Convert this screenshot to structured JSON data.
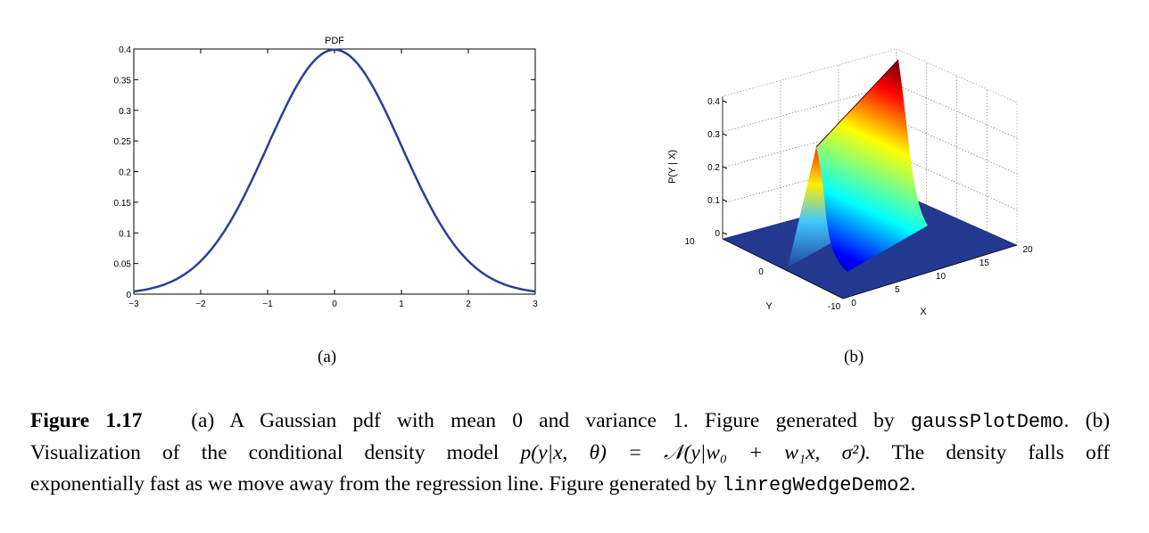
{
  "figure_a": {
    "label": "(a)",
    "chart_data": {
      "type": "line",
      "title": "PDF",
      "xlabel": "",
      "ylabel": "",
      "xlim": [
        -3,
        3
      ],
      "ylim": [
        0,
        0.4
      ],
      "xticks": [
        "−3",
        "−2",
        "−1",
        "0",
        "1",
        "2",
        "3"
      ],
      "yticks": [
        "0",
        "0.05",
        "0.1",
        "0.15",
        "0.2",
        "0.25",
        "0.3",
        "0.35",
        "0.4"
      ],
      "line_color": "#2e3f92",
      "series": [
        {
          "x": [
            -3,
            -2.5,
            -2,
            -1.5,
            -1,
            -0.5,
            0,
            0.5,
            1,
            1.5,
            2,
            2.5,
            3
          ],
          "y": [
            0.0044,
            0.0175,
            0.054,
            0.1295,
            0.242,
            0.352,
            0.3989,
            0.352,
            0.242,
            0.1295,
            0.054,
            0.0175,
            0.0044
          ]
        }
      ]
    }
  },
  "figure_b": {
    "label": "(b)",
    "chart_data": {
      "type": "surface",
      "xlabel": "X",
      "ylabel": "Y",
      "zlabel": "P(Y | X)",
      "xticks": [
        "0",
        "5",
        "10",
        "15",
        "20"
      ],
      "yticks": [
        "-10",
        "0",
        "10"
      ],
      "zticks": [
        "0",
        "0.1",
        "0.2",
        "0.3",
        "0.4"
      ],
      "xlim": [
        0,
        20
      ],
      "ylim": [
        -10,
        10
      ],
      "zlim": [
        0,
        0.4
      ],
      "colormap": "jet"
    }
  },
  "caption": {
    "fig_label": "Figure 1.17",
    "line1_text": "(a) A Gaussian pdf with mean 0 and variance 1. Figure generated by",
    "code1": "gaussPlotDemo",
    "line1_end": ". (b)",
    "line2_text": "Visualization of the conditional density model",
    "equation": "p(y|x, θ) = 𝒩(y|w₀ + w₁x, σ²).",
    "line2_end": "The density falls off",
    "line3_text": "exponentially fast as we move away from the regression line. Figure generated by",
    "code2": "linregWedgeDemo2",
    "line3_end": "."
  }
}
